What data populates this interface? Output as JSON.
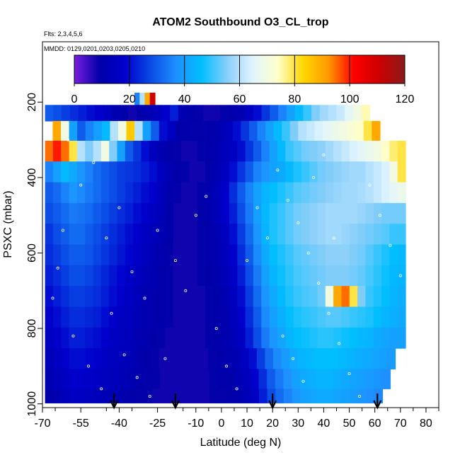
{
  "chart_data": {
    "type": "heatmap",
    "title": "ATOM2 Southbound O3_CL_trop",
    "notes": [
      "Flts: 2,3,4,5,6",
      "MMDD: 0129,0201,0203,0205,0210"
    ],
    "xlabel": "Latitude (deg N)",
    "ylabel": "PSXC (mbar)",
    "xlim": [
      -70,
      85
    ],
    "ylim": [
      1010,
      40
    ],
    "y_inverted": true,
    "x_ticks": [
      -70,
      -55,
      -40,
      -25,
      -10,
      0,
      10,
      20,
      30,
      40,
      50,
      60,
      70,
      80
    ],
    "y_ticks": [
      200,
      400,
      600,
      800,
      1000
    ],
    "colorbar": {
      "range": [
        0,
        120
      ],
      "ticks": [
        0,
        20,
        40,
        60,
        80,
        100,
        120
      ],
      "colors": [
        "#7a1ee0",
        "#0000a8",
        "#0000cc",
        "#0a4be6",
        "#1e90ff",
        "#00bfff",
        "#87cefa",
        "#e0f4ff",
        "#ffffcc",
        "#ffd700",
        "#ff9900",
        "#ff0000",
        "#cc0000",
        "#8b1a1a"
      ]
    },
    "flight_markers_lat": [
      -42,
      -18,
      20,
      61
    ],
    "lat_cols": [
      -68,
      -65,
      -62,
      -59,
      -56,
      -53,
      -50,
      -47,
      -44,
      -41,
      -38,
      -35,
      -32,
      -29,
      -26,
      -23,
      -20,
      -17,
      -14,
      -11,
      -8,
      -5,
      -2,
      1,
      4,
      7,
      10,
      13,
      16,
      19,
      22,
      25,
      28,
      31,
      34,
      37,
      40,
      43,
      46,
      49,
      52,
      55,
      58,
      61,
      64,
      67,
      70
    ],
    "rows": [
      {
        "p": 190,
        "x0": -34,
        "x1": -26,
        "values": [
          35,
          60,
          90,
          110
        ]
      },
      {
        "p": 225,
        "x0": -69,
        "x1": 58,
        "values": [
          30,
          28,
          26,
          24,
          22,
          20,
          18,
          15,
          12,
          10,
          8,
          10,
          12,
          14,
          18,
          22,
          12,
          10,
          9,
          8,
          8,
          9,
          10,
          12,
          15,
          20,
          25,
          30,
          35,
          40,
          45,
          50,
          55,
          58,
          60,
          62,
          66,
          70,
          75
        ]
      },
      {
        "p": 275,
        "x0": -66,
        "x1": 62,
        "values": [
          90,
          70,
          40,
          30,
          35,
          40,
          45,
          60,
          70,
          85,
          60,
          40,
          30,
          20,
          15,
          10,
          10,
          9,
          9,
          10,
          12,
          15,
          20,
          25,
          30,
          35,
          40,
          45,
          50,
          55,
          60,
          62,
          64,
          66,
          68,
          70,
          72,
          74,
          80,
          90
        ]
      },
      {
        "p": 330,
        "x0": -69,
        "x1": 72,
        "values": [
          95,
          100,
          95,
          80,
          60,
          55,
          60,
          70,
          55,
          40,
          30,
          25,
          20,
          15,
          12,
          10,
          9,
          8,
          8,
          9,
          10,
          12,
          14,
          16,
          20,
          25,
          30,
          35,
          40,
          45,
          50,
          52,
          54,
          55,
          56,
          58,
          60,
          62,
          64,
          66,
          68,
          70,
          74,
          78,
          80
        ]
      },
      {
        "p": 385,
        "x0": -69,
        "x1": 72,
        "values": [
          35,
          40,
          45,
          42,
          38,
          35,
          32,
          30,
          28,
          26,
          25,
          24,
          22,
          20,
          15,
          12,
          10,
          9,
          8,
          8,
          9,
          12,
          15,
          20,
          25,
          30,
          35,
          38,
          40,
          42,
          45,
          48,
          50,
          52,
          54,
          55,
          56,
          57,
          58,
          58,
          60,
          62,
          64,
          70,
          80
        ]
      },
      {
        "p": 440,
        "x0": -69,
        "x1": 72,
        "values": [
          30,
          32,
          35,
          38,
          36,
          34,
          32,
          30,
          28,
          26,
          24,
          22,
          20,
          18,
          14,
          11,
          9,
          8,
          8,
          9,
          11,
          14,
          18,
          24,
          30,
          35,
          40,
          44,
          46,
          48,
          50,
          52,
          53,
          54,
          55,
          56,
          57,
          58,
          58,
          59,
          60,
          62,
          64,
          66,
          68
        ]
      },
      {
        "p": 495,
        "x0": -69,
        "x1": 72,
        "values": [
          28,
          30,
          32,
          34,
          33,
          32,
          30,
          28,
          26,
          24,
          22,
          20,
          18,
          16,
          13,
          10,
          8,
          8,
          8,
          9,
          11,
          14,
          18,
          22,
          28,
          34,
          40,
          45,
          48,
          50,
          52,
          54,
          55,
          56,
          57,
          58,
          58,
          58,
          58,
          57,
          56,
          55,
          54,
          54,
          54
        ]
      },
      {
        "p": 550,
        "x0": -69,
        "x1": 72,
        "values": [
          25,
          28,
          30,
          32,
          32,
          30,
          28,
          26,
          24,
          22,
          20,
          18,
          16,
          14,
          12,
          10,
          8,
          8,
          8,
          9,
          10,
          12,
          15,
          20,
          26,
          32,
          38,
          44,
          48,
          50,
          52,
          54,
          55,
          56,
          57,
          58,
          58,
          57,
          56,
          55,
          54,
          53,
          52,
          50,
          50
        ]
      },
      {
        "p": 605,
        "x0": -69,
        "x1": 72,
        "values": [
          24,
          26,
          28,
          30,
          30,
          29,
          27,
          25,
          23,
          21,
          19,
          17,
          15,
          13,
          11,
          9,
          8,
          8,
          8,
          9,
          10,
          12,
          14,
          18,
          24,
          30,
          36,
          42,
          46,
          48,
          50,
          52,
          53,
          54,
          55,
          56,
          56,
          56,
          55,
          54,
          52,
          50,
          48,
          46,
          45
        ]
      },
      {
        "p": 660,
        "x0": -69,
        "x1": 72,
        "values": [
          22,
          24,
          26,
          28,
          28,
          27,
          25,
          23,
          21,
          19,
          17,
          15,
          13,
          12,
          10,
          9,
          8,
          8,
          8,
          9,
          10,
          11,
          13,
          17,
          22,
          28,
          34,
          40,
          44,
          47,
          49,
          51,
          52,
          53,
          54,
          55,
          55,
          55,
          54,
          53,
          51,
          49,
          47,
          45,
          44
        ]
      },
      {
        "p": 715,
        "x0": -69,
        "x1": 72,
        "values": [
          20,
          22,
          24,
          26,
          26,
          25,
          24,
          22,
          20,
          18,
          16,
          14,
          12,
          11,
          10,
          9,
          8,
          8,
          8,
          8,
          9,
          10,
          12,
          15,
          20,
          26,
          32,
          38,
          42,
          45,
          48,
          50,
          51,
          52,
          54,
          70,
          90,
          95,
          80,
          55,
          50,
          48,
          46,
          44,
          43
        ]
      },
      {
        "p": 770,
        "x0": -69,
        "x1": 72,
        "values": [
          18,
          20,
          22,
          24,
          24,
          23,
          22,
          20,
          18,
          16,
          15,
          13,
          12,
          11,
          10,
          9,
          8,
          8,
          8,
          8,
          9,
          10,
          11,
          14,
          18,
          24,
          30,
          36,
          40,
          43,
          46,
          48,
          49,
          50,
          51,
          52,
          52,
          51,
          50,
          49,
          48,
          46,
          44,
          43,
          42
        ]
      },
      {
        "p": 825,
        "x0": -69,
        "x1": 72,
        "values": [
          16,
          18,
          20,
          22,
          22,
          21,
          20,
          18,
          16,
          15,
          14,
          12,
          11,
          10,
          9,
          8,
          8,
          8,
          8,
          8,
          9,
          10,
          11,
          13,
          16,
          22,
          28,
          34,
          38,
          41,
          44,
          46,
          47,
          48,
          49,
          49,
          48,
          47,
          46,
          45,
          44,
          42,
          41,
          40,
          40
        ]
      },
      {
        "p": 880,
        "x0": -69,
        "x1": 68,
        "values": [
          14,
          16,
          18,
          20,
          20,
          19,
          18,
          16,
          15,
          14,
          13,
          11,
          10,
          9,
          8,
          8,
          8,
          8,
          8,
          8,
          9,
          10,
          11,
          12,
          15,
          20,
          26,
          32,
          36,
          39,
          42,
          44,
          45,
          46,
          46,
          46,
          45,
          44,
          43,
          42,
          41,
          40,
          39
        ]
      },
      {
        "p": 935,
        "x0": -69,
        "x1": 66,
        "values": [
          12,
          14,
          16,
          18,
          18,
          17,
          16,
          15,
          14,
          13,
          12,
          10,
          9,
          9,
          8,
          8,
          8,
          8,
          8,
          8,
          9,
          10,
          10,
          12,
          14,
          18,
          24,
          30,
          34,
          37,
          40,
          42,
          43,
          44,
          44,
          43,
          42,
          41,
          40,
          39,
          38,
          37
        ]
      },
      {
        "p": 985,
        "x0": -69,
        "x1": 63,
        "values": [
          10,
          12,
          14,
          16,
          16,
          15,
          14,
          13,
          12,
          11,
          10,
          9,
          9,
          8,
          8,
          8,
          8,
          8,
          8,
          8,
          9,
          9,
          10,
          11,
          13,
          16,
          22,
          28,
          32,
          35,
          38,
          40,
          41,
          42,
          42,
          41,
          40,
          39,
          38,
          37,
          36
        ]
      }
    ],
    "sample_dots": [
      [
        -60,
        300
      ],
      [
        -55,
        420
      ],
      [
        -50,
        360
      ],
      [
        -45,
        560
      ],
      [
        -40,
        480
      ],
      [
        -35,
        650
      ],
      [
        -30,
        720
      ],
      [
        -25,
        540
      ],
      [
        -58,
        820
      ],
      [
        -52,
        900
      ],
      [
        -47,
        960
      ],
      [
        -43,
        760
      ],
      [
        -38,
        870
      ],
      [
        -33,
        930
      ],
      [
        -28,
        980
      ],
      [
        -22,
        880
      ],
      [
        -18,
        620
      ],
      [
        -14,
        700
      ],
      [
        -10,
        500
      ],
      [
        -6,
        450
      ],
      [
        -2,
        800
      ],
      [
        2,
        900
      ],
      [
        6,
        960
      ],
      [
        10,
        620
      ],
      [
        14,
        480
      ],
      [
        18,
        560
      ],
      [
        22,
        380
      ],
      [
        26,
        460
      ],
      [
        30,
        520
      ],
      [
        34,
        600
      ],
      [
        38,
        680
      ],
      [
        42,
        760
      ],
      [
        46,
        840
      ],
      [
        50,
        920
      ],
      [
        54,
        980
      ],
      [
        58,
        420
      ],
      [
        62,
        500
      ],
      [
        66,
        580
      ],
      [
        70,
        660
      ],
      [
        -64,
        640
      ],
      [
        -66,
        720
      ],
      [
        -62,
        540
      ],
      [
        24,
        820
      ],
      [
        28,
        880
      ],
      [
        32,
        940
      ],
      [
        36,
        400
      ],
      [
        40,
        340
      ],
      [
        44,
        560
      ]
    ]
  }
}
